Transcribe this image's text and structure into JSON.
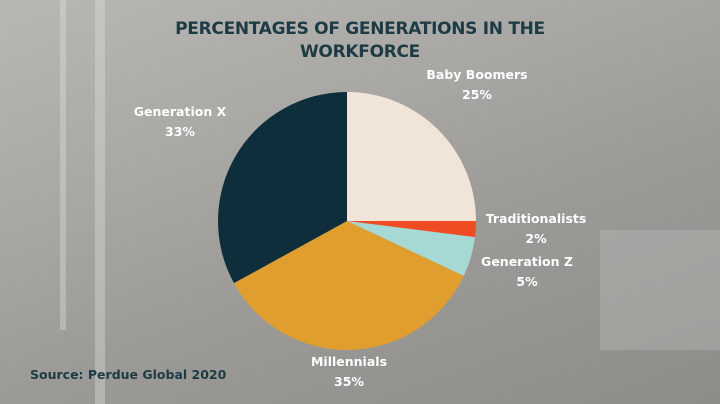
{
  "chart_data": {
    "type": "pie",
    "title": "PERCENTAGES OF GENERATIONS IN THE WORKFORCE",
    "title_lines": [
      "PERCENTAGES OF GENERATIONS IN THE",
      "WORKFORCE"
    ],
    "source": "Source: Perdue Global 2020",
    "start_angle": "12 o'clock, clockwise",
    "slices": [
      {
        "label": "Baby Boomers",
        "value": 25,
        "value_label": "25%",
        "color": "#f1e5d9"
      },
      {
        "label": "Traditionalists",
        "value": 2,
        "value_label": "2%",
        "color": "#f04b22"
      },
      {
        "label": "Generation Z",
        "value": 5,
        "value_label": "5%",
        "color": "#a7d9d4"
      },
      {
        "label": "Millennials",
        "value": 35,
        "value_label": "35%",
        "color": "#e09e2f"
      },
      {
        "label": "Generation X",
        "value": 33,
        "value_label": "33%",
        "color": "#0e2e3b"
      }
    ]
  }
}
